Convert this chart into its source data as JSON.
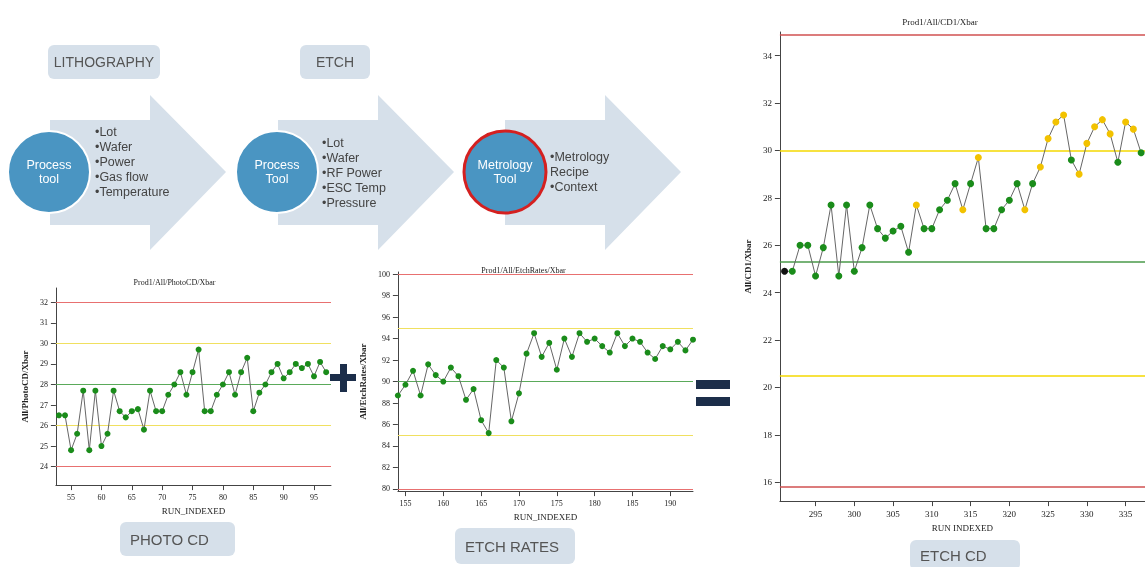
{
  "chart_data": [
    {
      "type": "other",
      "annotations": [
        "LITHOGRAPHY",
        "ETCH",
        "Process tool",
        "•Lot",
        "•Wafer",
        "•Power",
        "•Gas flow",
        "•Temperature",
        "Process Tool",
        "•Lot",
        "•Wafer",
        "•RF Power",
        "•ESC Temp",
        "•Pressure",
        "Metrology Tool",
        "•Metrology Recipe",
        "•Context"
      ]
    },
    {
      "type": "line",
      "title": "Prod1/All/PhotoCD/Xbar",
      "xlabel": "RUN_INDEXED",
      "ylabel": "All/PhotoCD/Xbar",
      "annotations": [
        "PHOTO CD"
      ],
      "marker": "circle",
      "grid": false,
      "x": [
        53,
        54,
        55,
        56,
        57,
        58,
        59,
        60,
        61,
        62,
        63,
        64,
        65,
        66,
        67,
        68,
        69,
        70,
        71,
        72,
        73,
        74,
        75,
        76,
        77,
        78,
        79,
        80,
        81,
        82,
        83,
        84,
        85,
        86,
        87,
        88,
        89,
        90,
        91,
        92,
        93,
        94,
        95,
        96,
        97
      ],
      "series": [
        {
          "color": "#666666",
          "values": [
            26.5,
            26.5,
            24.8,
            25.6,
            27.7,
            24.8,
            27.7,
            25.0,
            25.6,
            27.7,
            26.7,
            26.4,
            26.7,
            26.8,
            25.8,
            27.7,
            26.7,
            26.7,
            27.5,
            28.0,
            28.6,
            27.5,
            28.6,
            29.7,
            26.7,
            26.7,
            27.5,
            28.0,
            28.6,
            27.5,
            28.6,
            29.3,
            26.7,
            27.6,
            28.0,
            28.6,
            29.0,
            28.3,
            28.6,
            29.0,
            28.8,
            29.0,
            28.4,
            29.1,
            28.6
          ],
          "colors": [
            "#1a8c1a",
            "#1a8c1a",
            "#1a8c1a",
            "#1a8c1a",
            "#1a8c1a",
            "#1a8c1a",
            "#1a8c1a",
            "#1a8c1a",
            "#1a8c1a",
            "#1a8c1a",
            "#1a8c1a",
            "#1a8c1a",
            "#1a8c1a",
            "#1a8c1a",
            "#1a8c1a",
            "#1a8c1a",
            "#1a8c1a",
            "#1a8c1a",
            "#1a8c1a",
            "#1a8c1a",
            "#1a8c1a",
            "#1a8c1a",
            "#1a8c1a",
            "#1a8c1a",
            "#1a8c1a",
            "#1a8c1a",
            "#1a8c1a",
            "#1a8c1a",
            "#1a8c1a",
            "#1a8c1a",
            "#1a8c1a",
            "#1a8c1a",
            "#1a8c1a",
            "#1a8c1a",
            "#1a8c1a",
            "#1a8c1a",
            "#1a8c1a",
            "#1a8c1a",
            "#1a8c1a",
            "#1a8c1a",
            "#1a8c1a",
            "#1a8c1a",
            "#1a8c1a",
            "#1a8c1a",
            "#1a8c1a"
          ]
        }
      ],
      "xlim": [
        52.5,
        97.8
      ],
      "ylim": [
        23.1,
        32.7
      ],
      "xticks": [
        55,
        60,
        65,
        70,
        75,
        80,
        85,
        90,
        95
      ],
      "yticks": [
        24,
        25,
        26,
        27,
        28,
        29,
        30,
        31,
        32
      ],
      "ref_lines": [
        {
          "axis": "y",
          "value": 32,
          "color": "#e87070"
        },
        {
          "axis": "y",
          "value": 30,
          "color": "#f0e060"
        },
        {
          "axis": "y",
          "value": 28,
          "color": "#5aaa5a"
        },
        {
          "axis": "y",
          "value": 26,
          "color": "#f0e060"
        },
        {
          "axis": "y",
          "value": 24,
          "color": "#e87070"
        }
      ]
    },
    {
      "type": "line",
      "title": "Prod1/All/EtchRates/Xbar",
      "xlabel": "RUN_INDEXED",
      "ylabel": "All/EtchRates/Xbar",
      "annotations": [
        "ETCH RATES"
      ],
      "marker": "circle",
      "grid": false,
      "x": [
        154,
        155,
        156,
        157,
        158,
        159,
        160,
        161,
        162,
        163,
        164,
        165,
        166,
        167,
        168,
        169,
        170,
        171,
        172,
        173,
        174,
        175,
        176,
        177,
        178,
        179,
        180,
        181,
        182,
        183,
        184,
        185,
        186,
        187,
        188,
        189,
        190,
        191,
        192,
        193
      ],
      "series": [
        {
          "color": "#666666",
          "values": [
            88.7,
            89.7,
            91.0,
            88.7,
            91.6,
            90.6,
            90.0,
            91.3,
            90.5,
            88.3,
            89.3,
            86.4,
            85.2,
            92.0,
            91.3,
            86.3,
            88.9,
            92.6,
            94.5,
            92.3,
            93.6,
            91.1,
            94.0,
            92.3,
            94.5,
            93.7,
            94.0,
            93.3,
            92.7,
            94.5,
            93.3,
            94.0,
            93.7,
            92.7,
            92.1,
            93.3,
            93.0,
            93.7,
            92.9,
            93.9
          ],
          "colors": [
            "#1a8c1a",
            "#1a8c1a",
            "#1a8c1a",
            "#1a8c1a",
            "#1a8c1a",
            "#1a8c1a",
            "#1a8c1a",
            "#1a8c1a",
            "#1a8c1a",
            "#1a8c1a",
            "#1a8c1a",
            "#1a8c1a",
            "#1a8c1a",
            "#1a8c1a",
            "#1a8c1a",
            "#1a8c1a",
            "#1a8c1a",
            "#1a8c1a",
            "#1a8c1a",
            "#1a8c1a",
            "#1a8c1a",
            "#1a8c1a",
            "#1a8c1a",
            "#1a8c1a",
            "#1a8c1a",
            "#1a8c1a",
            "#1a8c1a",
            "#1a8c1a",
            "#1a8c1a",
            "#1a8c1a",
            "#1a8c1a",
            "#1a8c1a",
            "#1a8c1a",
            "#1a8c1a",
            "#1a8c1a",
            "#1a8c1a",
            "#1a8c1a",
            "#1a8c1a",
            "#1a8c1a",
            "#1a8c1a"
          ]
        }
      ],
      "xlim": [
        154,
        193
      ],
      "ylim": [
        79.8,
        100.2
      ],
      "xticks": [
        155,
        160,
        165,
        170,
        175,
        180,
        185,
        190
      ],
      "yticks": [
        80,
        82,
        84,
        86,
        88,
        90,
        92,
        94,
        96,
        98,
        100
      ],
      "ref_lines": [
        {
          "axis": "y",
          "value": 100,
          "color": "#e87070"
        },
        {
          "axis": "y",
          "value": 95,
          "color": "#f0e060"
        },
        {
          "axis": "y",
          "value": 90,
          "color": "#5aaa5a"
        },
        {
          "axis": "y",
          "value": 85,
          "color": "#f0e060"
        },
        {
          "axis": "y",
          "value": 80,
          "color": "#e87070"
        }
      ]
    },
    {
      "type": "line",
      "title": "Prod1/All/CD1/Xbar",
      "xlabel": "RUN INDEXED",
      "ylabel": "All/CD1/Xbar",
      "annotations": [
        "ETCH CD"
      ],
      "marker": "circle",
      "grid": false,
      "x": [
        291,
        292,
        293,
        294,
        295,
        296,
        297,
        298,
        299,
        300,
        301,
        302,
        303,
        304,
        305,
        306,
        307,
        308,
        309,
        310,
        311,
        312,
        313,
        314,
        315,
        316,
        317,
        318,
        319,
        320,
        321,
        322,
        323,
        324,
        325,
        326,
        327,
        328,
        329,
        330,
        331,
        332,
        333,
        334,
        335,
        336,
        337
      ],
      "series": [
        {
          "color": "#666666",
          "values": [
            24.9,
            24.9,
            26.0,
            26.0,
            24.7,
            25.9,
            27.7,
            24.7,
            27.7,
            24.9,
            25.9,
            27.7,
            26.7,
            26.3,
            26.6,
            26.8,
            25.7,
            27.7,
            26.7,
            26.7,
            27.5,
            27.9,
            28.6,
            27.5,
            28.6,
            29.7,
            26.7,
            26.7,
            27.5,
            27.9,
            28.6,
            27.5,
            28.6,
            29.3,
            30.5,
            31.2,
            31.5,
            29.6,
            29.0,
            30.3,
            31.0,
            31.3,
            30.7,
            29.5,
            31.2,
            30.9,
            29.9
          ],
          "colors": [
            "#111111",
            "#1a8c1a",
            "#1a8c1a",
            "#1a8c1a",
            "#1a8c1a",
            "#1a8c1a",
            "#1a8c1a",
            "#1a8c1a",
            "#1a8c1a",
            "#1a8c1a",
            "#1a8c1a",
            "#1a8c1a",
            "#1a8c1a",
            "#1a8c1a",
            "#1a8c1a",
            "#1a8c1a",
            "#1a8c1a",
            "#f2c200",
            "#1a8c1a",
            "#1a8c1a",
            "#1a8c1a",
            "#1a8c1a",
            "#1a8c1a",
            "#f2c200",
            "#1a8c1a",
            "#f2c200",
            "#1a8c1a",
            "#1a8c1a",
            "#1a8c1a",
            "#1a8c1a",
            "#1a8c1a",
            "#f2c200",
            "#1a8c1a",
            "#f2c200",
            "#f2c200",
            "#f2c200",
            "#f2c200",
            "#1a8c1a",
            "#f2c200",
            "#f2c200",
            "#f2c200",
            "#f2c200",
            "#f2c200",
            "#1a8c1a",
            "#f2c200",
            "#f2c200",
            "#1a8c1a"
          ]
        }
      ],
      "xlim": [
        290.4,
        337.5
      ],
      "ylim": [
        15.2,
        35
      ],
      "xticks": [
        295,
        300,
        305,
        310,
        315,
        320,
        325,
        330,
        335
      ],
      "yticks": [
        16,
        18,
        20,
        22,
        24,
        26,
        28,
        30,
        32,
        34
      ],
      "ref_lines": [
        {
          "axis": "y",
          "value": 34.9,
          "color": "#d05050"
        },
        {
          "axis": "y",
          "value": 30,
          "color": "#f5d800"
        },
        {
          "axis": "y",
          "value": 25.3,
          "color": "#4a9a4a"
        },
        {
          "axis": "y",
          "value": 20.5,
          "color": "#f5d800"
        },
        {
          "axis": "y",
          "value": 15.8,
          "color": "#d05050"
        }
      ]
    }
  ]
}
